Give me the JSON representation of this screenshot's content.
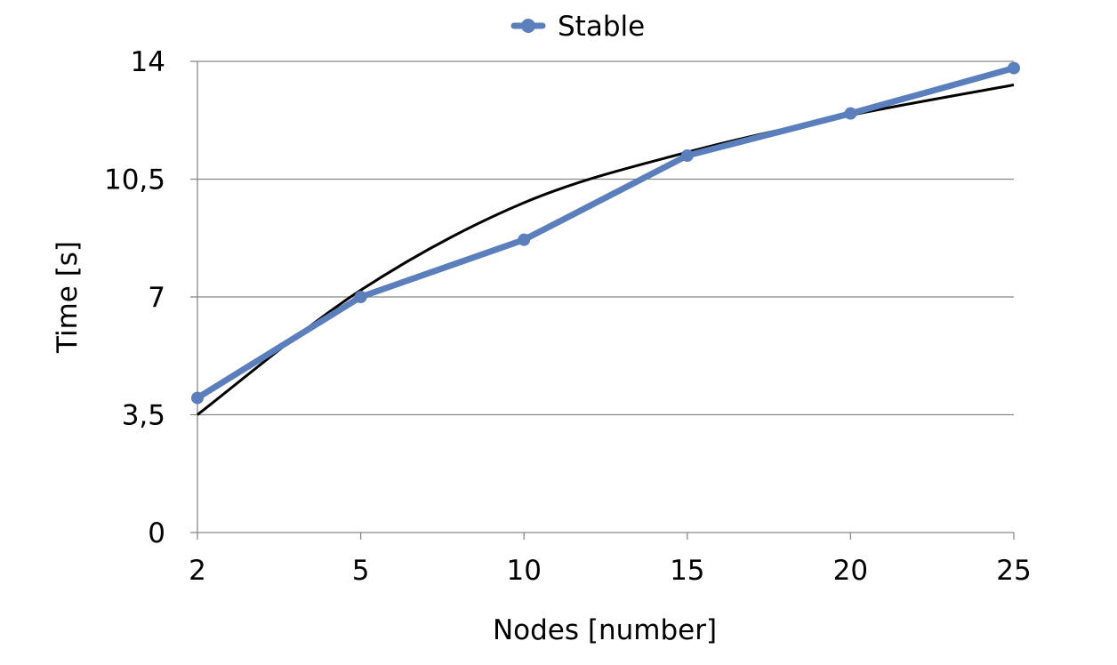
{
  "chart_data": {
    "type": "line",
    "x": [
      "2",
      "5",
      "10",
      "15",
      "20",
      "25"
    ],
    "y_ticks": [
      "0",
      "3,5",
      "7",
      "10,5",
      "14"
    ],
    "ylim": [
      0,
      14
    ],
    "xlabel": "Nodes [number]",
    "ylabel": "Time [s]",
    "grid": "horizontal",
    "legend_position": "top-center",
    "series": [
      {
        "name": "Stable",
        "color": "#5b7fbd",
        "marker": "circle",
        "values": [
          4.0,
          7.0,
          8.7,
          11.2,
          12.45,
          13.8
        ]
      }
    ],
    "trendline": {
      "type": "logarithmic",
      "color": "#000000",
      "values": [
        3.5,
        7.2,
        9.8,
        11.3,
        12.4,
        13.3
      ]
    }
  }
}
